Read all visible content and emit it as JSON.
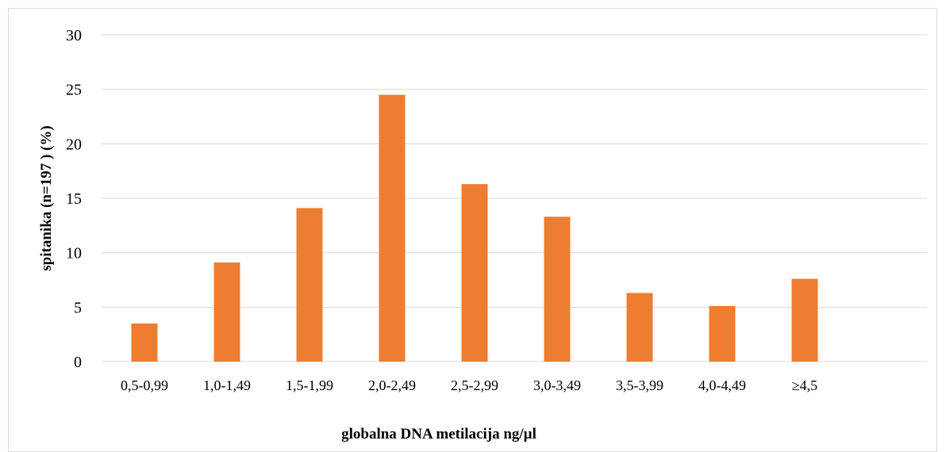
{
  "chart_data": {
    "type": "bar",
    "categories": [
      "0,5-0,99",
      "1,0-1,49",
      "1,5-1,99",
      "2,0-2,49",
      "2,5-2,99",
      "3,0-3,49",
      "3,5-3,99",
      "4,0-4,49",
      "≥4,5"
    ],
    "values": [
      3.5,
      9.1,
      14.1,
      24.5,
      16.3,
      13.3,
      6.3,
      5.1,
      7.6
    ],
    "xlabel": "globalna DNA metilacija ng/µl",
    "ylabel": "spitanika (n=197 ) (%)",
    "ylim": [
      0,
      30
    ],
    "yticks": [
      "0",
      "5",
      "10",
      "15",
      "20",
      "25",
      "30"
    ],
    "grid": true,
    "legend": "none",
    "bar_color": "#ED7D31",
    "grid_color": "#d9d9d9"
  }
}
